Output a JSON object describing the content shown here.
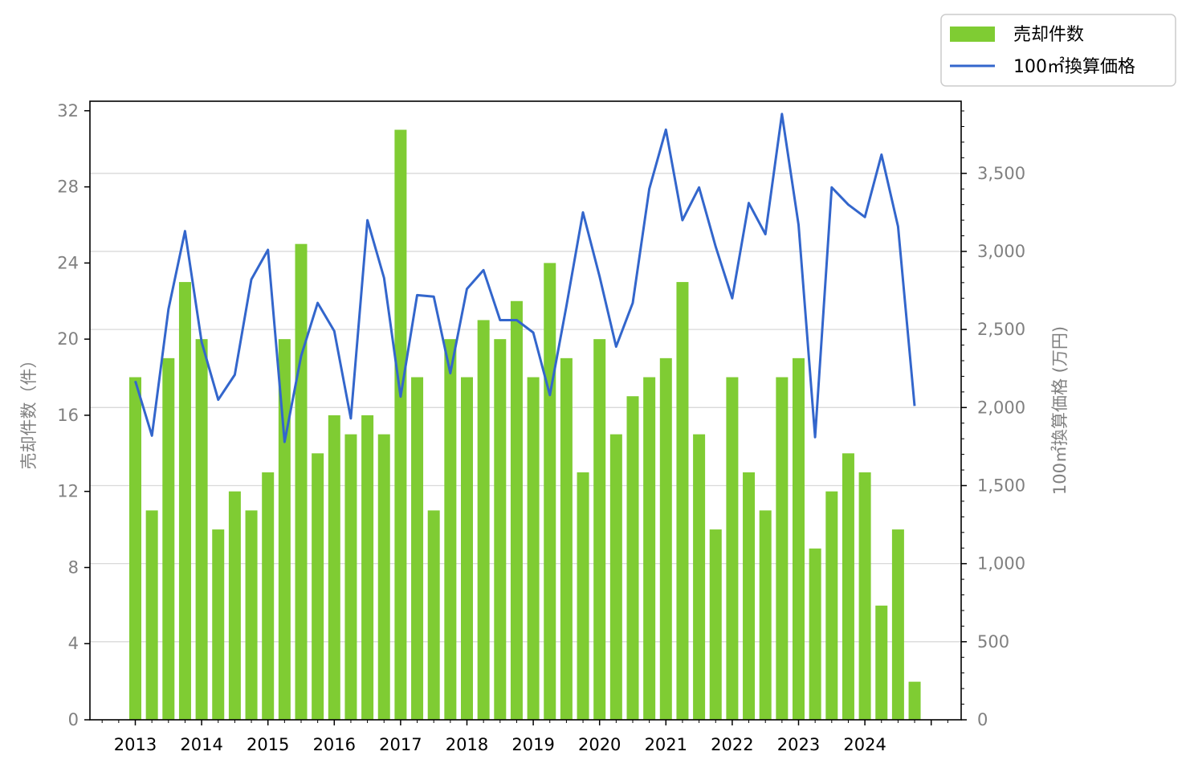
{
  "chart_data": {
    "type": "bar",
    "title": "",
    "xlabel": "",
    "ylabel": "売却件数（件）",
    "y2label": "100㎡換算価格 (万円)",
    "ylim": [
      0,
      32.5
    ],
    "y2lim": [
      0,
      3962
    ],
    "yticks": [
      "0",
      "4",
      "8",
      "12",
      "16",
      "20",
      "24",
      "28",
      "32"
    ],
    "y2ticks": [
      "0",
      "500",
      "1,000",
      "1,500",
      "2,000",
      "2,500",
      "3,000",
      "3,500"
    ],
    "xtick_labels": [
      "2013",
      "2014",
      "2015",
      "2016",
      "2017",
      "2018",
      "2019",
      "2020",
      "2021",
      "2022",
      "2023",
      "2024"
    ],
    "grid": "horizontal",
    "legend_position": "top-right",
    "colors": {
      "bars": "#7fcc33",
      "line": "#3366cc"
    },
    "series": [
      {
        "name": "売却件数",
        "type": "bar",
        "axis": "left",
        "values": [
          18,
          11,
          19,
          23,
          20,
          10,
          12,
          11,
          13,
          20,
          25,
          14,
          16,
          15,
          16,
          15,
          31,
          18,
          11,
          20,
          18,
          21,
          20,
          22,
          18,
          24,
          19,
          13,
          20,
          15,
          17,
          18,
          19,
          23,
          15,
          10,
          18,
          13,
          11,
          18,
          19,
          9,
          12,
          14,
          13,
          6,
          10,
          2
        ]
      },
      {
        "name": "100㎡換算価格",
        "type": "line",
        "axis": "right",
        "values": [
          2170,
          1820,
          2630,
          3130,
          2420,
          2050,
          2210,
          2820,
          3010,
          1780,
          2330,
          2670,
          2490,
          1930,
          3200,
          2830,
          2070,
          2720,
          2710,
          2220,
          2760,
          2880,
          2560,
          2560,
          2480,
          2080,
          2650,
          3250,
          2840,
          2390,
          2670,
          3400,
          3780,
          3200,
          3410,
          3030,
          2700,
          3310,
          3110,
          3880,
          3170,
          1810,
          3410,
          3300,
          3220,
          3620,
          3160,
          2010
        ]
      }
    ]
  }
}
